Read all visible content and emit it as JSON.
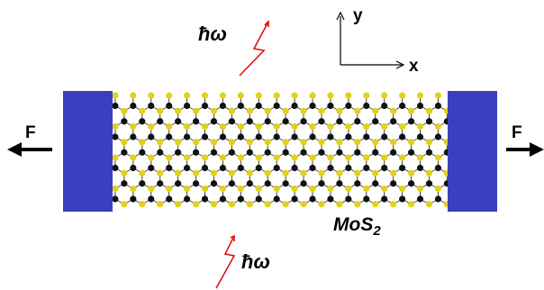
{
  "photon_label_top": "ħω",
  "photon_label_bottom": "ħω",
  "axis": {
    "y_label": "y",
    "x_label": "x"
  },
  "force": {
    "left_label": "F",
    "right_label": "F"
  },
  "material": {
    "name": "MoS",
    "subscript": "2"
  },
  "colors": {
    "clamp": "#3a3fbf",
    "molybdenum": "#111111",
    "sulfur": "#e0d21a",
    "bond": "#444444",
    "photon": "#e01010",
    "arrow": "#000000"
  }
}
